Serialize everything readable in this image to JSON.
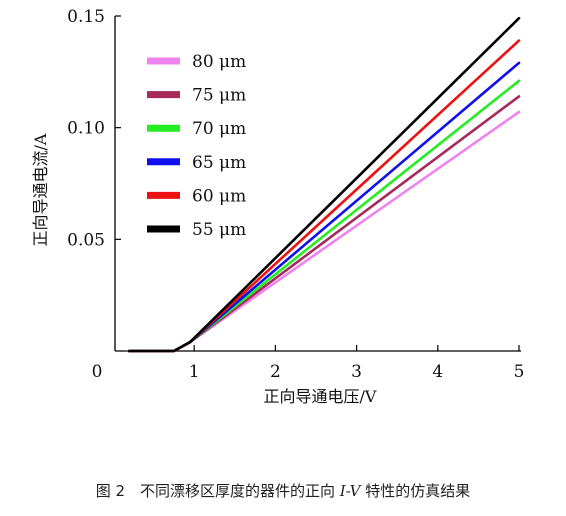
{
  "chart_data": {
    "type": "line",
    "title": "",
    "xlabel": "正向导通电压/V",
    "ylabel": "正向导通电流/A",
    "xlim": [
      0,
      5
    ],
    "ylim": [
      0,
      0.15
    ],
    "xticks": [
      "0",
      "1",
      "2",
      "3",
      "4",
      "5"
    ],
    "yticks": [
      "0.05",
      "0.10",
      "0.15"
    ],
    "grid": false,
    "legend_position": "top-left",
    "series": [
      {
        "name": "80 μm",
        "color": "#ee82ee",
        "x": [
          0.2,
          0.75,
          0.95,
          5.0
        ],
        "y": [
          0.0,
          0.0,
          0.004,
          0.107
        ]
      },
      {
        "name": "75 μm",
        "color": "#a52a5a",
        "x": [
          0.2,
          0.75,
          0.95,
          5.0
        ],
        "y": [
          0.0,
          0.0,
          0.004,
          0.114
        ]
      },
      {
        "name": "70 μm",
        "color": "#22ee22",
        "x": [
          0.2,
          0.75,
          0.95,
          5.0
        ],
        "y": [
          0.0,
          0.0,
          0.004,
          0.121
        ]
      },
      {
        "name": "65 μm",
        "color": "#1010ee",
        "x": [
          0.2,
          0.75,
          0.95,
          5.0
        ],
        "y": [
          0.0,
          0.0,
          0.004,
          0.129
        ]
      },
      {
        "name": "60 μm",
        "color": "#ee1111",
        "x": [
          0.2,
          0.75,
          0.95,
          5.0
        ],
        "y": [
          0.0,
          0.0,
          0.004,
          0.139
        ]
      },
      {
        "name": "55 μm",
        "color": "#000000",
        "x": [
          0.2,
          0.75,
          0.95,
          5.0
        ],
        "y": [
          0.0,
          0.0,
          0.004,
          0.149
        ]
      }
    ]
  },
  "caption": {
    "prefix": "图 2　不同漂移区厚度的器件的正向 ",
    "italic": "I-V",
    "suffix": " 特性的仿真结果"
  }
}
